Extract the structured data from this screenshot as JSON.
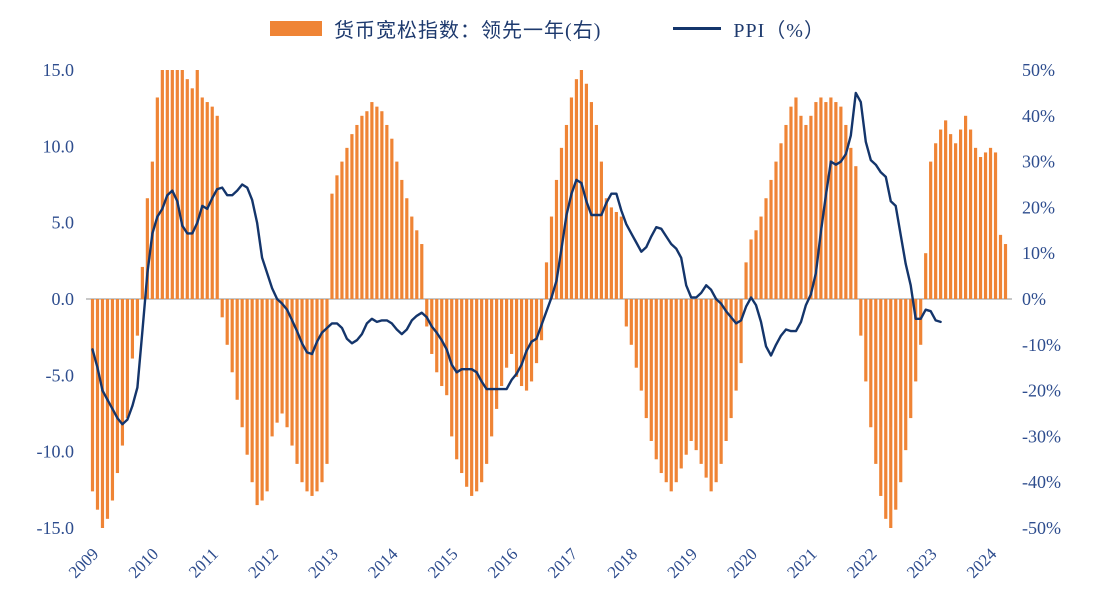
{
  "legend": {
    "bar_label": "货币宽松指数：领先一年(右)",
    "line_label": "PPI（%）"
  },
  "chart_data": {
    "type": "bar",
    "combo": "bar+line dual-axis",
    "frequency": "monthly",
    "start_month": "2009-01",
    "x_tick_labels": [
      "2009",
      "2010",
      "2011",
      "2012",
      "2013",
      "2014",
      "2015",
      "2016",
      "2017",
      "2018",
      "2019",
      "2020",
      "2021",
      "2022",
      "2023",
      "2024"
    ],
    "grid": "zero-line-only",
    "legend_position": "top-center",
    "zero_line_color": "#C8C8C8",
    "axis_text_color": "#2E4D8E",
    "left_axis": {
      "range": [
        -15,
        15
      ],
      "tick_values": [
        15,
        10,
        5,
        0,
        -5,
        -10,
        -15
      ],
      "tick_labels": [
        "15.0",
        "10.0",
        "5.0",
        "0.0",
        "-5.0",
        "-10.0",
        "-15.0"
      ]
    },
    "right_axis": {
      "range": [
        -50,
        50
      ],
      "tick_values": [
        50,
        40,
        30,
        20,
        10,
        0,
        -10,
        -20,
        -30,
        -40,
        -50
      ],
      "tick_labels": [
        "50%",
        "40%",
        "30%",
        "20%",
        "10%",
        "0%",
        "-10%",
        "-20%",
        "-30%",
        "-40%",
        "-50%"
      ]
    },
    "series": [
      {
        "name": "货币宽松指数：领先一年(右)",
        "chart_type": "bar",
        "axis": "right",
        "color": "#EF8435",
        "start": "2009-01",
        "values": [
          -42,
          -46,
          -50,
          -48,
          -44,
          -38,
          -32,
          -26,
          -13,
          -8,
          7,
          22,
          30,
          44,
          50,
          50,
          50,
          50,
          50,
          48,
          46,
          50,
          44,
          43,
          42,
          40,
          -4,
          -10,
          -16,
          -22,
          -28,
          -34,
          -40,
          -45,
          -44,
          -42,
          -30,
          -27,
          -25,
          -28,
          -32,
          -36,
          -40,
          -42,
          -43,
          -42,
          -40,
          -36,
          23,
          27,
          30,
          33,
          36,
          38,
          40,
          41,
          43,
          42,
          41,
          38,
          35,
          30,
          26,
          22,
          18,
          15,
          12,
          -6,
          -12,
          -16,
          -19,
          -21,
          -30,
          -35,
          -38,
          -41,
          -43,
          -42,
          -40,
          -36,
          -30,
          -24,
          -19,
          -15,
          -12,
          -17,
          -19,
          -20,
          -18,
          -14,
          -9,
          8,
          18,
          26,
          33,
          38,
          44,
          48,
          50,
          47,
          43,
          38,
          30,
          22,
          20,
          19,
          18,
          -6,
          -10,
          -15,
          -20,
          -26,
          -31,
          -35,
          -38,
          -40,
          -42,
          -40,
          -37,
          -34,
          -31,
          -33,
          -36,
          -39,
          -42,
          -40,
          -36,
          -31,
          -26,
          -20,
          -14,
          8,
          13,
          15,
          18,
          22,
          26,
          30,
          34,
          38,
          42,
          44,
          40,
          38,
          40,
          43,
          44,
          43,
          44,
          43,
          42,
          38,
          33,
          29,
          -8,
          -18,
          -28,
          -36,
          -43,
          -48,
          -50,
          -46,
          -40,
          -33,
          -26,
          -18,
          -10,
          10,
          30,
          34,
          37,
          39,
          36,
          34,
          37,
          40,
          37,
          33,
          31,
          32,
          33,
          32,
          14,
          12
        ]
      },
      {
        "name": "PPI（%）",
        "chart_type": "line",
        "axis": "left",
        "color": "#14356B",
        "start": "2009-01",
        "values": [
          -3.3,
          -4.5,
          -6.0,
          -6.6,
          -7.2,
          -7.8,
          -8.2,
          -7.9,
          -7.0,
          -5.8,
          -2.1,
          1.7,
          4.3,
          5.4,
          5.9,
          6.8,
          7.1,
          6.4,
          4.8,
          4.3,
          4.3,
          5.0,
          6.1,
          5.9,
          6.6,
          7.2,
          7.3,
          6.8,
          6.8,
          7.1,
          7.5,
          7.3,
          6.5,
          5.0,
          2.7,
          1.7,
          0.7,
          0.0,
          -0.3,
          -0.7,
          -1.4,
          -2.1,
          -2.9,
          -3.5,
          -3.6,
          -2.8,
          -2.2,
          -1.9,
          -1.6,
          -1.6,
          -1.9,
          -2.6,
          -2.9,
          -2.7,
          -2.3,
          -1.6,
          -1.3,
          -1.5,
          -1.4,
          -1.4,
          -1.6,
          -2.0,
          -2.3,
          -2.0,
          -1.4,
          -1.1,
          -0.9,
          -1.2,
          -1.8,
          -2.2,
          -2.7,
          -3.3,
          -4.3,
          -4.8,
          -4.6,
          -4.6,
          -4.6,
          -4.8,
          -5.4,
          -5.9,
          -5.9,
          -5.9,
          -5.9,
          -5.9,
          -5.3,
          -4.9,
          -4.3,
          -3.4,
          -2.8,
          -2.6,
          -1.7,
          -0.8,
          0.1,
          1.2,
          3.3,
          5.5,
          6.9,
          7.8,
          7.6,
          6.4,
          5.5,
          5.5,
          5.5,
          6.3,
          6.9,
          6.9,
          5.8,
          4.9,
          4.3,
          3.7,
          3.1,
          3.4,
          4.1,
          4.7,
          4.6,
          4.1,
          3.6,
          3.3,
          2.7,
          0.9,
          0.1,
          0.1,
          0.4,
          0.9,
          0.6,
          0.0,
          -0.3,
          -0.8,
          -1.2,
          -1.6,
          -1.4,
          -0.5,
          0.1,
          -0.4,
          -1.5,
          -3.1,
          -3.7,
          -3.0,
          -2.4,
          -2.0,
          -2.1,
          -2.1,
          -1.5,
          -0.4,
          0.3,
          1.7,
          4.4,
          6.8,
          9.0,
          8.8,
          9.0,
          9.5,
          10.7,
          13.5,
          12.9,
          10.3,
          9.1,
          8.8,
          8.3,
          8.0,
          6.4,
          6.1,
          4.2,
          2.3,
          0.9,
          -1.3,
          -1.3,
          -0.7,
          -0.8,
          -1.4,
          -1.5
        ]
      }
    ]
  }
}
